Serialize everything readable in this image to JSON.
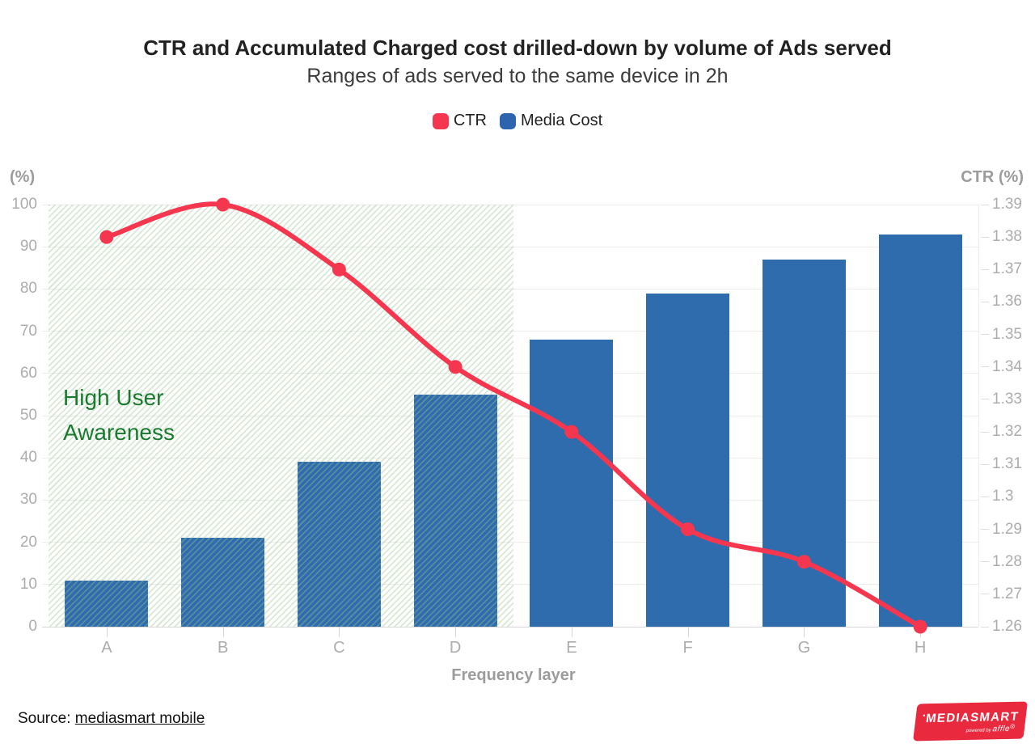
{
  "header": {
    "title": "CTR and Accumulated Charged cost drilled-down by volume of Ads served",
    "subtitle": "Ranges of ads served to the same device in 2h"
  },
  "legend": [
    {
      "label": "CTR",
      "color": "#f5364f"
    },
    {
      "label": "Media Cost",
      "color": "#2d64ae"
    }
  ],
  "chart_data": {
    "type": "bar+line combo",
    "categories": [
      "A",
      "B",
      "C",
      "D",
      "E",
      "F",
      "G",
      "H"
    ],
    "series": [
      {
        "name": "Media Cost",
        "type": "bar",
        "axis": "left",
        "color": "#2f6cad",
        "values": [
          11,
          21,
          39,
          55,
          68,
          79,
          87,
          93
        ]
      },
      {
        "name": "CTR",
        "type": "line",
        "axis": "right",
        "color": "#f5364f",
        "values": [
          1.38,
          1.39,
          1.37,
          1.34,
          1.32,
          1.29,
          1.28,
          1.26
        ]
      }
    ],
    "left_axis": {
      "title": "(%)",
      "min": 0,
      "max": 100,
      "ticks": [
        0,
        10,
        20,
        30,
        40,
        50,
        60,
        70,
        80,
        90,
        100
      ]
    },
    "right_axis": {
      "title": "CTR (%)",
      "min": 1.26,
      "max": 1.39,
      "ticks": [
        1.26,
        1.27,
        1.28,
        1.29,
        1.3,
        1.31,
        1.32,
        1.33,
        1.34,
        1.35,
        1.36,
        1.37,
        1.38,
        1.39
      ]
    },
    "xlabel": "Frequency layer",
    "grid": true,
    "legend_position": "top",
    "annotation": {
      "line1": "High User",
      "line2": "Awareness",
      "color": "#1a7a2f",
      "region_categories": [
        "A",
        "B",
        "C",
        "D"
      ]
    }
  },
  "footer": {
    "source_prefix": "Source: ",
    "source_link": "mediasmart mobile",
    "logo_mark": "▪",
    "logo_main": "MEDIASMART",
    "logo_sub_prefix": "powered by ",
    "logo_sub_brand": "affle",
    "logo_sub_reg": "®",
    "logo_color": "#e8293e"
  }
}
